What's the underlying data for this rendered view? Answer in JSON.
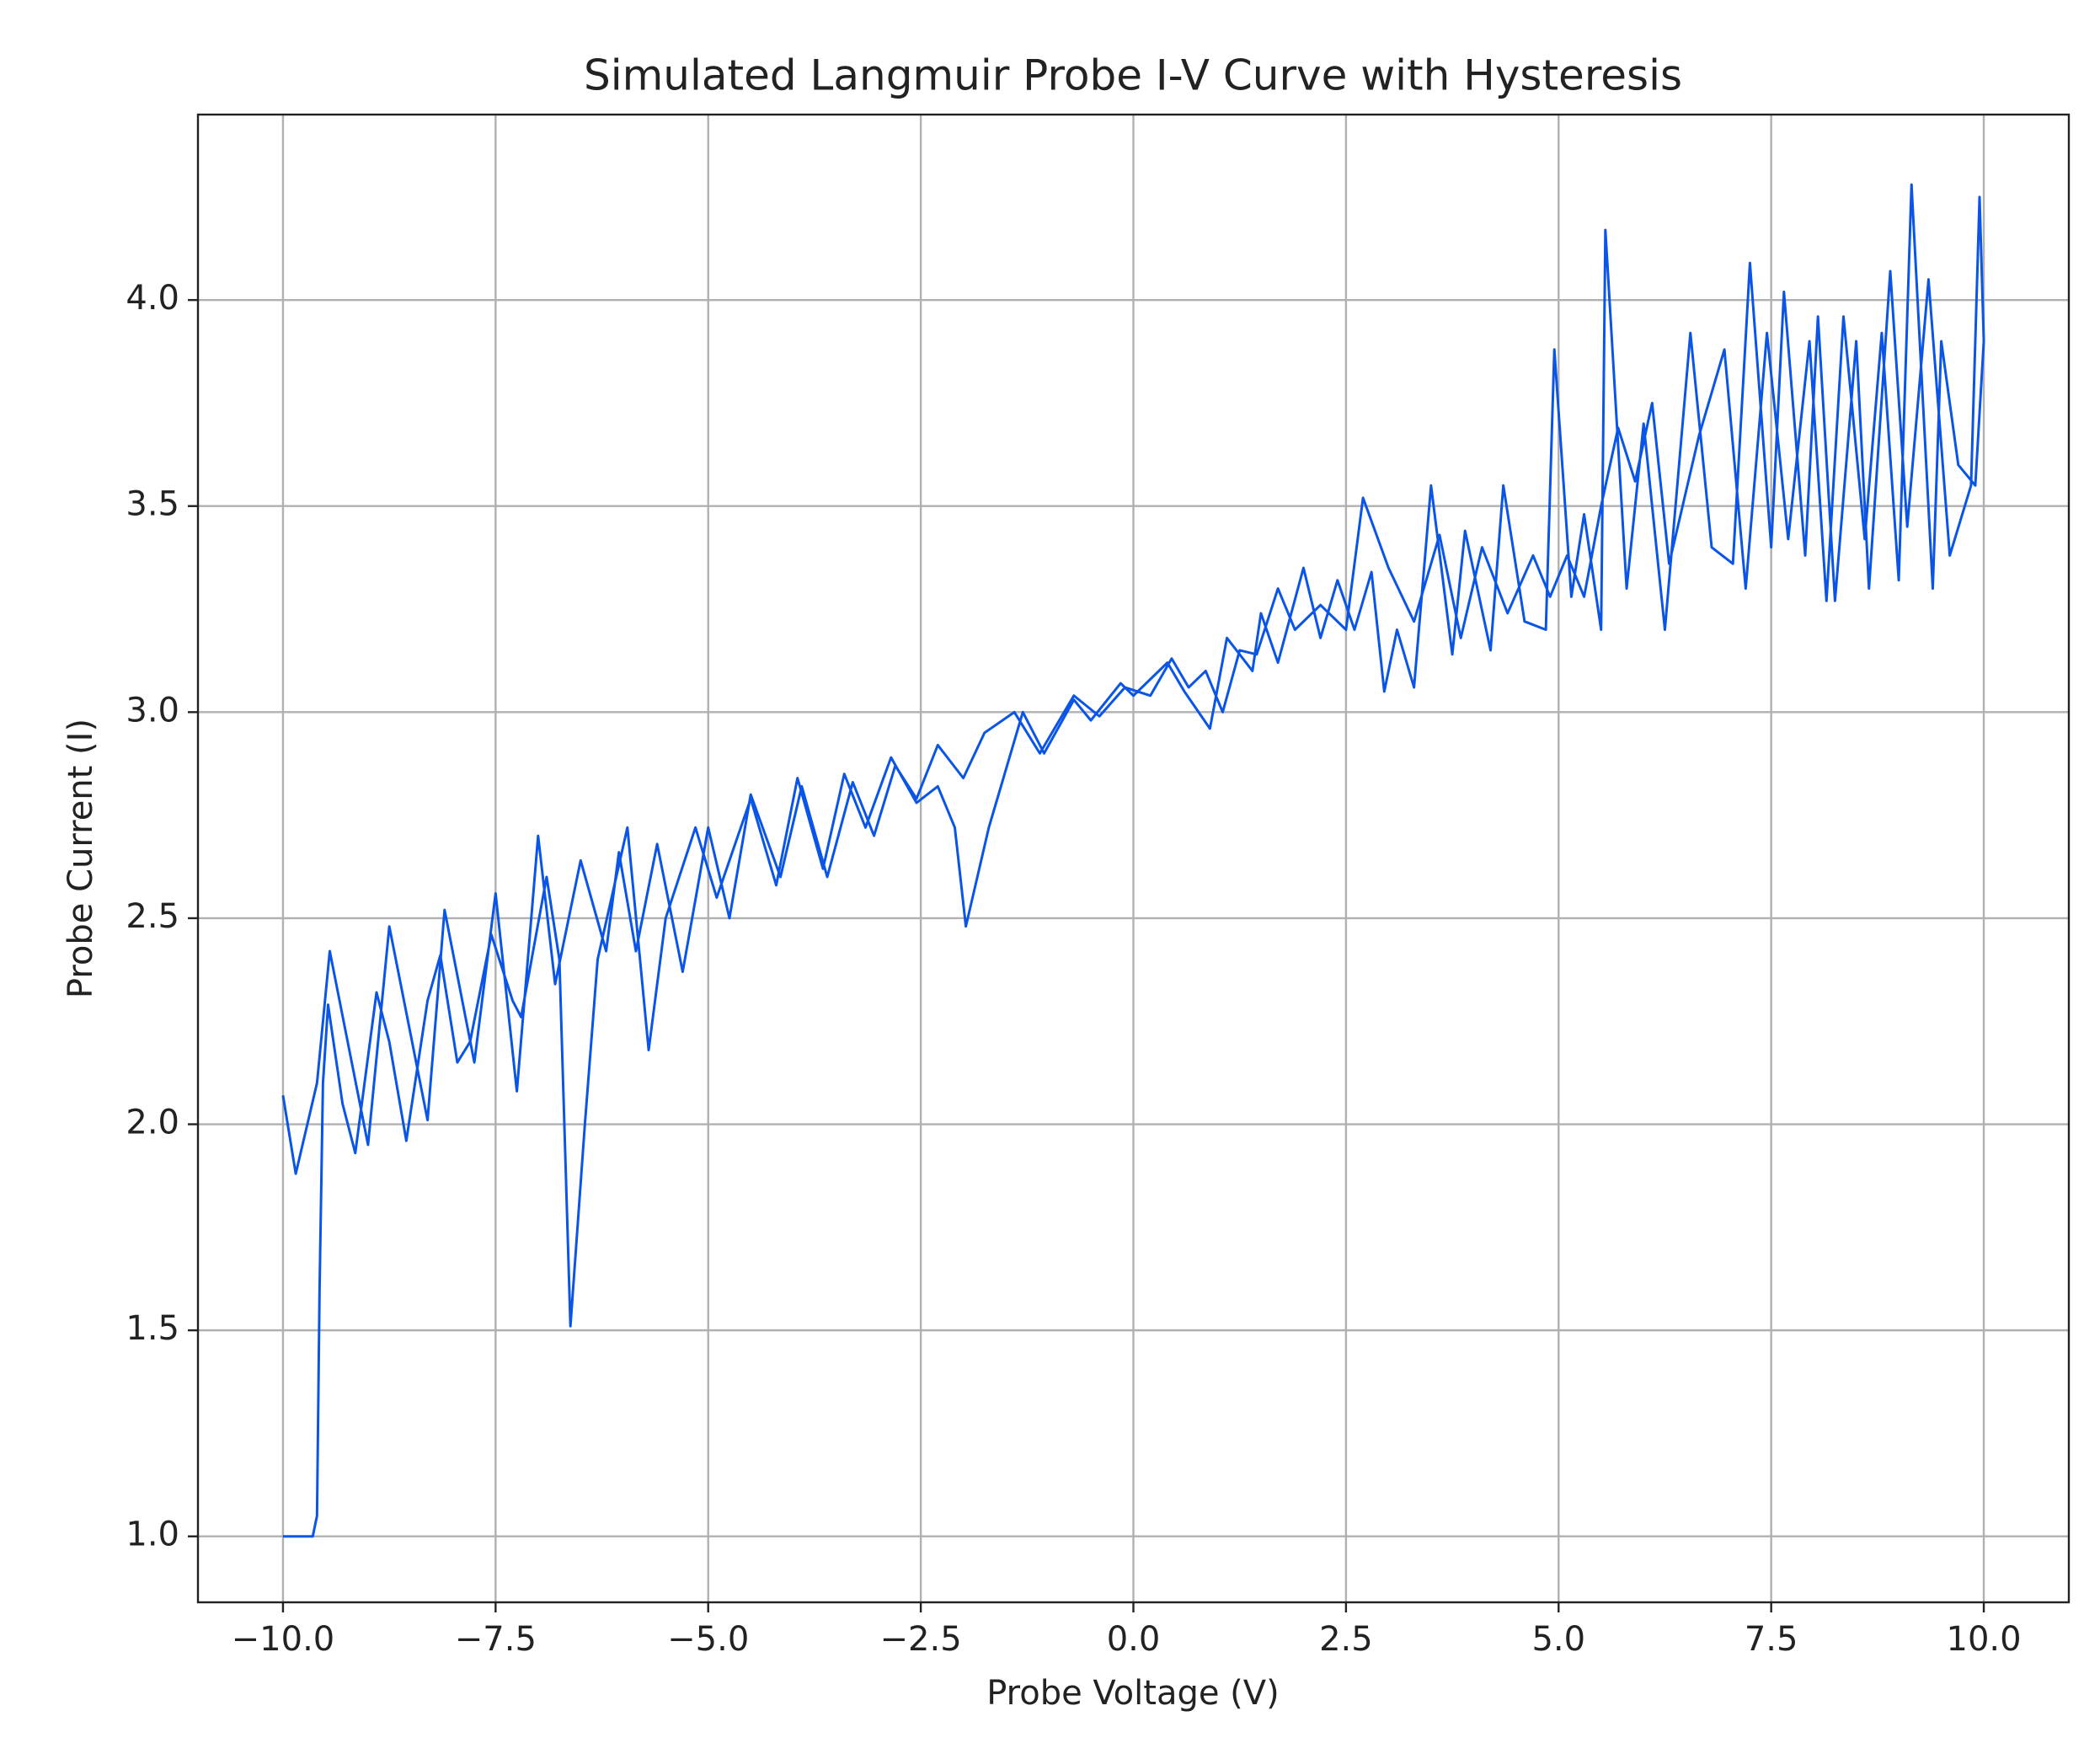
{
  "chart_data": {
    "type": "line",
    "title": "Simulated Langmuir Probe I-V Curve with Hysteresis",
    "x_label": "Probe Voltage (V)",
    "y_label": "Probe Current (I)",
    "color": "#0a55e6",
    "grid": true,
    "xlim": [
      -11.0,
      11.0
    ],
    "ylim": [
      0.84,
      4.45
    ],
    "xticks": [
      {
        "value": -10,
        "label": "−10.0"
      },
      {
        "value": -7.5,
        "label": "−7.5"
      },
      {
        "value": -5,
        "label": "−5.0"
      },
      {
        "value": -2.5,
        "label": "−2.5"
      },
      {
        "value": 0,
        "label": "0.0"
      },
      {
        "value": 2.5,
        "label": "2.5"
      },
      {
        "value": 5,
        "label": "5.0"
      },
      {
        "value": 7.5,
        "label": "7.5"
      },
      {
        "value": 10,
        "label": "10.0"
      }
    ],
    "yticks": [
      {
        "value": 1,
        "label": "1.0"
      },
      {
        "value": 1.5,
        "label": "1.5"
      },
      {
        "value": 2,
        "label": "2.0"
      },
      {
        "value": 2.5,
        "label": "2.5"
      },
      {
        "value": 3,
        "label": "3.0"
      },
      {
        "value": 3.5,
        "label": "3.5"
      },
      {
        "value": 4,
        "label": "4.0"
      }
    ],
    "x": [
      -10,
      -9.65,
      -9.6,
      -9.57,
      -9.53,
      -9.47,
      -9.3,
      -9.15,
      -8.9,
      -8.75,
      -8.55,
      -8.3,
      -8.15,
      -7.95,
      -7.8,
      -7.55,
      -7.3,
      -7.2,
      -6.9,
      -6.75,
      -6.62,
      -6.45,
      -6.3,
      -5.95,
      -5.7,
      -5.5,
      -5.15,
      -4.9,
      -4.5,
      -4.2,
      -3.95,
      -3.65,
      -3.4,
      -3.15,
      -2.85,
      -2.55,
      -2.3,
      -2.1,
      -1.97,
      -1.7,
      -1.3,
      -1.05,
      -0.7,
      -0.5,
      -0.15,
      0.0,
      0.4,
      0.6,
      0.9,
      1.1,
      1.4,
      1.5,
      1.7,
      2.0,
      2.2,
      2.4,
      2.6,
      2.8,
      2.95,
      3.1,
      3.3,
      3.5,
      3.75,
      3.9,
      4.2,
      4.35,
      4.6,
      4.85,
      4.95,
      5.15,
      5.3,
      5.5,
      5.55,
      5.8,
      6.0,
      6.25,
      6.55,
      6.8,
      7.05,
      7.25,
      7.5,
      7.65,
      7.9,
      8.05,
      8.25,
      8.5,
      8.65,
      8.9,
      9.1,
      9.35,
      9.6,
      9.85,
      9.95,
      10.0,
      9.9,
      9.7,
      9.5,
      9.4,
      9.15,
      9.0,
      8.8,
      8.6,
      8.35,
      8.15,
      7.95,
      7.7,
      7.45,
      7.2,
      6.95,
      6.65,
      6.3,
      6.1,
      5.9,
      5.7,
      5.5,
      5.3,
      5.1,
      4.9,
      4.7,
      4.4,
      4.1,
      3.85,
      3.6,
      3.3,
      3.0,
      2.7,
      2.5,
      2.2,
      1.9,
      1.7,
      1.45,
      1.25,
      1.05,
      0.85,
      0.65,
      0.45,
      0.2,
      -0.1,
      -0.4,
      -0.7,
      -1.1,
      -1.4,
      -1.75,
      -2.0,
      -2.3,
      -2.55,
      -2.8,
      -3.05,
      -3.3,
      -3.6,
      -3.9,
      -4.15,
      -4.5,
      -4.75,
      -5.0,
      -5.3,
      -5.6,
      -5.85,
      -6.05,
      -6.2,
      -6.5,
      -6.8,
      -7.0,
      -7.25,
      -7.5,
      -7.75,
      -8.1,
      -8.3,
      -8.75,
      -9.0,
      -9.45,
      -9.6,
      -9.85,
      -10.0
    ],
    "values": [
      1.0,
      1.0,
      1.05,
      1.6,
      2.1,
      2.29,
      2.05,
      1.93,
      2.32,
      2.2,
      1.96,
      2.3,
      2.41,
      2.15,
      2.2,
      2.46,
      2.3,
      2.26,
      2.6,
      2.4,
      1.51,
      2.0,
      2.4,
      2.72,
      2.18,
      2.5,
      2.72,
      2.55,
      2.79,
      2.58,
      2.84,
      2.62,
      2.85,
      2.72,
      2.89,
      2.78,
      2.82,
      2.72,
      2.48,
      2.72,
      3.0,
      2.9,
      3.03,
      2.98,
      3.07,
      3.04,
      3.12,
      3.05,
      2.96,
      3.18,
      3.1,
      3.24,
      3.12,
      3.35,
      3.18,
      3.32,
      3.2,
      3.34,
      3.05,
      3.2,
      3.06,
      3.55,
      3.14,
      3.44,
      3.15,
      3.55,
      3.22,
      3.2,
      3.88,
      3.28,
      3.48,
      3.2,
      4.17,
      3.3,
      3.7,
      3.2,
      3.92,
      3.4,
      3.36,
      4.09,
      3.4,
      4.02,
      3.38,
      3.96,
      3.27,
      3.9,
      3.3,
      4.07,
      3.45,
      4.05,
      3.38,
      3.55,
      4.25,
      3.9,
      3.55,
      3.6,
      3.9,
      3.3,
      4.28,
      3.32,
      3.92,
      3.42,
      3.96,
      3.27,
      3.9,
      3.42,
      3.92,
      3.3,
      3.88,
      3.67,
      3.36,
      3.75,
      3.56,
      3.69,
      3.5,
      3.28,
      3.38,
      3.28,
      3.38,
      3.24,
      3.4,
      3.18,
      3.43,
      3.22,
      3.35,
      3.52,
      3.2,
      3.26,
      3.2,
      3.3,
      3.14,
      3.15,
      3.0,
      3.1,
      3.06,
      3.13,
      3.04,
      3.06,
      2.99,
      3.04,
      2.9,
      3.0,
      2.95,
      2.84,
      2.92,
      2.79,
      2.87,
      2.7,
      2.83,
      2.6,
      2.82,
      2.6,
      2.8,
      2.5,
      2.72,
      2.37,
      2.68,
      2.42,
      2.66,
      2.42,
      2.64,
      2.34,
      2.7,
      2.08,
      2.56,
      2.15,
      2.52,
      2.01,
      2.48,
      1.95,
      2.42,
      2.1,
      1.88,
      2.07
    ]
  }
}
